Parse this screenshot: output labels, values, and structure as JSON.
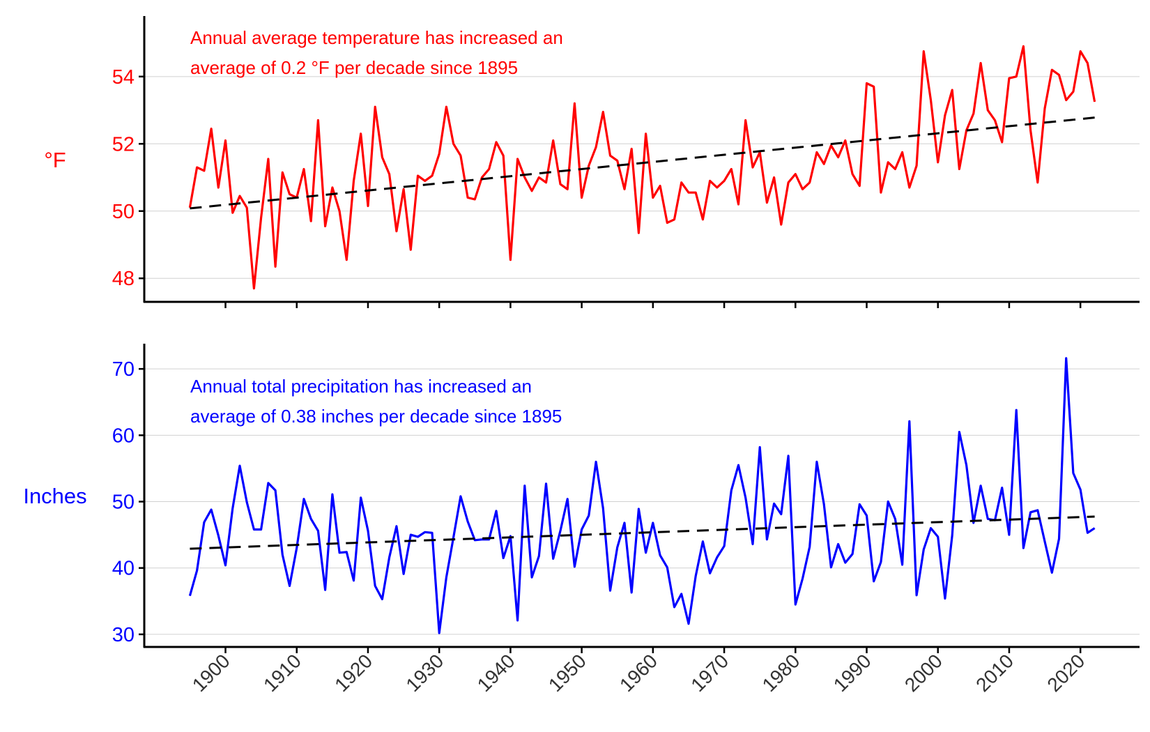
{
  "chart_data": [
    {
      "type": "line",
      "panel": "top",
      "ylabel": "°F",
      "annotation": [
        "Annual average temperature has increased an",
        "average of 0.2 °F per decade since 1895"
      ],
      "color": "#FF0000",
      "trend_color": "#000000",
      "ylim": [
        47.3,
        55.8
      ],
      "xlim": [
        1888.6,
        2028.3
      ],
      "yticks": [
        48,
        50,
        52,
        54
      ],
      "xticks": [
        1900,
        1910,
        1920,
        1930,
        1940,
        1950,
        1960,
        1970,
        1980,
        1990,
        2000,
        2010,
        2020
      ],
      "grid": "horizontal",
      "x_start": 1895,
      "values": [
        50.1,
        51.3,
        51.2,
        52.45,
        50.7,
        52.1,
        49.95,
        50.45,
        50.1,
        47.7,
        49.8,
        51.55,
        48.35,
        51.15,
        50.5,
        50.4,
        51.25,
        49.7,
        52.7,
        49.55,
        50.7,
        50.0,
        48.55,
        50.9,
        52.3,
        50.15,
        53.1,
        51.6,
        51.1,
        49.4,
        50.65,
        48.85,
        51.05,
        50.9,
        51.05,
        51.7,
        53.1,
        52.0,
        51.65,
        50.4,
        50.35,
        51.0,
        51.25,
        52.05,
        51.65,
        48.55,
        51.55,
        51.0,
        50.6,
        51.0,
        50.85,
        52.1,
        50.8,
        50.65,
        53.2,
        50.4,
        51.35,
        51.9,
        52.95,
        51.65,
        51.5,
        50.65,
        51.85,
        49.35,
        52.3,
        50.4,
        50.75,
        49.65,
        49.75,
        50.85,
        50.55,
        50.55,
        49.75,
        50.9,
        50.7,
        50.9,
        51.25,
        50.2,
        52.7,
        51.3,
        51.75,
        50.25,
        51.0,
        49.6,
        50.85,
        51.1,
        50.65,
        50.85,
        51.75,
        51.4,
        51.95,
        51.6,
        52.1,
        51.1,
        50.75,
        53.8,
        53.7,
        50.55,
        51.45,
        51.25,
        51.75,
        50.7,
        51.35,
        54.75,
        53.3,
        51.45,
        52.85,
        53.6,
        51.25,
        52.4,
        52.9,
        54.4,
        53.0,
        52.7,
        52.05,
        53.95,
        54.0,
        54.9,
        52.4,
        50.85,
        53.05,
        54.2,
        54.05,
        53.3,
        53.55,
        54.75,
        54.4,
        53.25
      ],
      "trend": {
        "x": [
          1895,
          2022
        ],
        "y": [
          50.08,
          52.78
        ]
      }
    },
    {
      "type": "line",
      "panel": "bottom",
      "ylabel": "Inches",
      "annotation": [
        "Annual total precipitation has increased an",
        "average of 0.38 inches per decade since 1895"
      ],
      "color": "#0000FF",
      "trend_color": "#000000",
      "ylim": [
        28.1,
        73.8
      ],
      "xlim": [
        1888.6,
        2028.3
      ],
      "yticks": [
        30,
        40,
        50,
        60,
        70
      ],
      "xticks": [
        1900,
        1910,
        1920,
        1930,
        1940,
        1950,
        1960,
        1970,
        1980,
        1990,
        2000,
        2010,
        2020
      ],
      "grid": "horizontal",
      "x_start": 1895,
      "values": [
        35.8,
        39.6,
        46.9,
        48.8,
        44.9,
        40.4,
        49.0,
        55.4,
        49.9,
        45.8,
        45.8,
        52.8,
        51.7,
        42.0,
        37.3,
        43.0,
        50.4,
        47.4,
        45.6,
        36.7,
        51.1,
        42.3,
        42.4,
        38.1,
        50.6,
        45.6,
        37.3,
        35.3,
        41.6,
        46.3,
        39.1,
        45.0,
        44.7,
        45.4,
        45.3,
        30.2,
        38.6,
        44.6,
        50.8,
        47.0,
        44.2,
        44.3,
        44.3,
        48.6,
        41.5,
        44.8,
        32.1,
        52.4,
        38.6,
        41.8,
        52.7,
        41.4,
        45.6,
        50.4,
        40.2,
        45.8,
        47.9,
        56.0,
        49.0,
        36.6,
        43.1,
        46.8,
        36.3,
        48.9,
        42.3,
        46.8,
        41.9,
        40.1,
        34.1,
        36.1,
        31.6,
        38.8,
        44.0,
        39.2,
        41.6,
        43.3,
        51.7,
        55.5,
        50.6,
        43.6,
        58.2,
        44.3,
        49.7,
        48.1,
        56.9,
        34.5,
        38.4,
        43.2,
        56.0,
        49.6,
        40.1,
        43.6,
        40.8,
        42.1,
        49.6,
        47.9,
        38.0,
        40.9,
        50.0,
        47.4,
        40.5,
        62.1,
        35.9,
        42.8,
        46.0,
        44.7,
        35.4,
        44.9,
        60.5,
        55.5,
        46.8,
        52.4,
        47.4,
        47.2,
        52.1,
        45.0,
        63.8,
        43.0,
        48.4,
        48.7,
        44.0,
        39.3,
        44.4,
        71.6,
        54.3,
        51.8,
        45.3,
        46.0
      ],
      "trend": {
        "x": [
          1895,
          2022
        ],
        "y": [
          42.9,
          47.75
        ]
      }
    }
  ]
}
